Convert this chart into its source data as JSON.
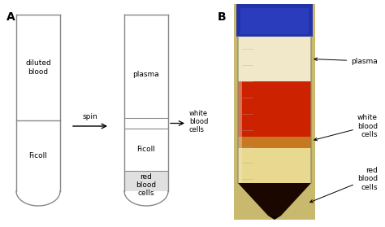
{
  "bg_color": "#ffffff",
  "label_A": "A",
  "label_B": "B",
  "tube1_label_blood": "diluted\nblood",
  "tube1_label_ficoll": "Ficoll",
  "tube2_label_plasma": "plasma",
  "tube2_label_ficoll": "Ficoll",
  "tube2_label_rbc": "red\nblood\ncells",
  "spin_text": "spin",
  "wbc_label": "white\nblood\ncells",
  "photo_label_plasma": "plasma",
  "photo_label_wbc": "white\nblood\ncells",
  "photo_label_rbc": "red\nblood\ncells",
  "hatch_pattern": "////",
  "tube_color": "#888888",
  "tube_lw": 1.0,
  "text_fontsize": 6.5,
  "panel_label_fontsize": 10
}
